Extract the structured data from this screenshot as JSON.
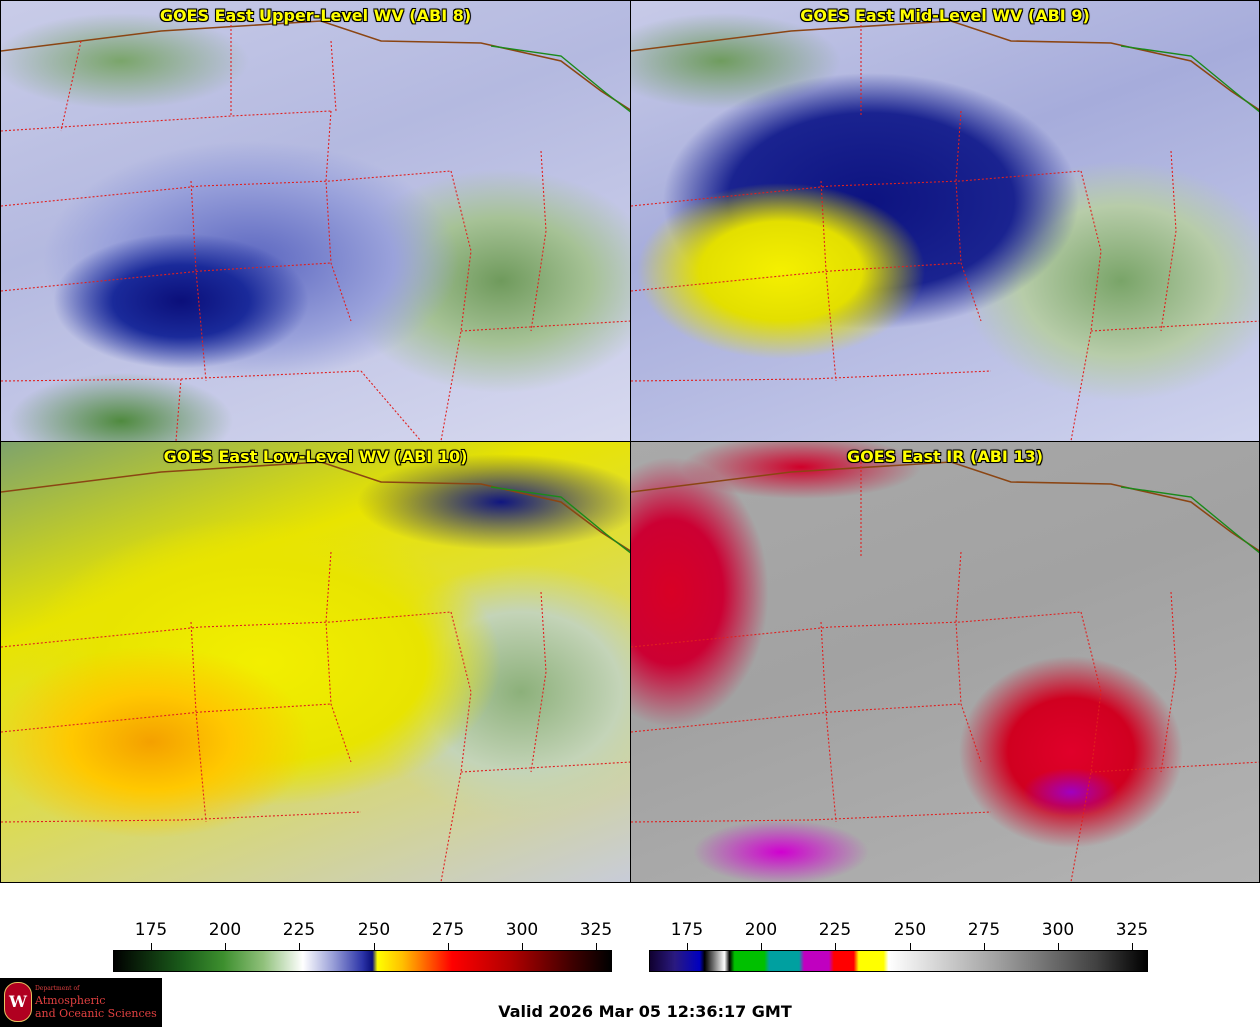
{
  "panels": [
    {
      "title": "GOES East Upper-Level WV (ABI 8)"
    },
    {
      "title": "GOES East Mid-Level WV (ABI 9)"
    },
    {
      "title": "GOES East Low-Level WV (ABI 10)"
    },
    {
      "title": "GOES East IR (ABI 13)"
    }
  ],
  "colorbars": {
    "left": {
      "ticks": [
        "175",
        "200",
        "225",
        "250",
        "275",
        "300",
        "325"
      ]
    },
    "right": {
      "ticks": [
        "175",
        "200",
        "225",
        "250",
        "275",
        "300",
        "325"
      ]
    }
  },
  "logo": {
    "seal_letter": "W",
    "dept": "Department of",
    "name_line1": "Atmospheric",
    "name_line2": "and Oceanic Sciences"
  },
  "valid_time": "Valid 2026 Mar 05 12:36:17 GMT",
  "colors": {
    "title_text": "#ffff00",
    "state_border": "#e02020",
    "country_border": "#8b4513",
    "lake_outline": "#1a8a1a"
  }
}
